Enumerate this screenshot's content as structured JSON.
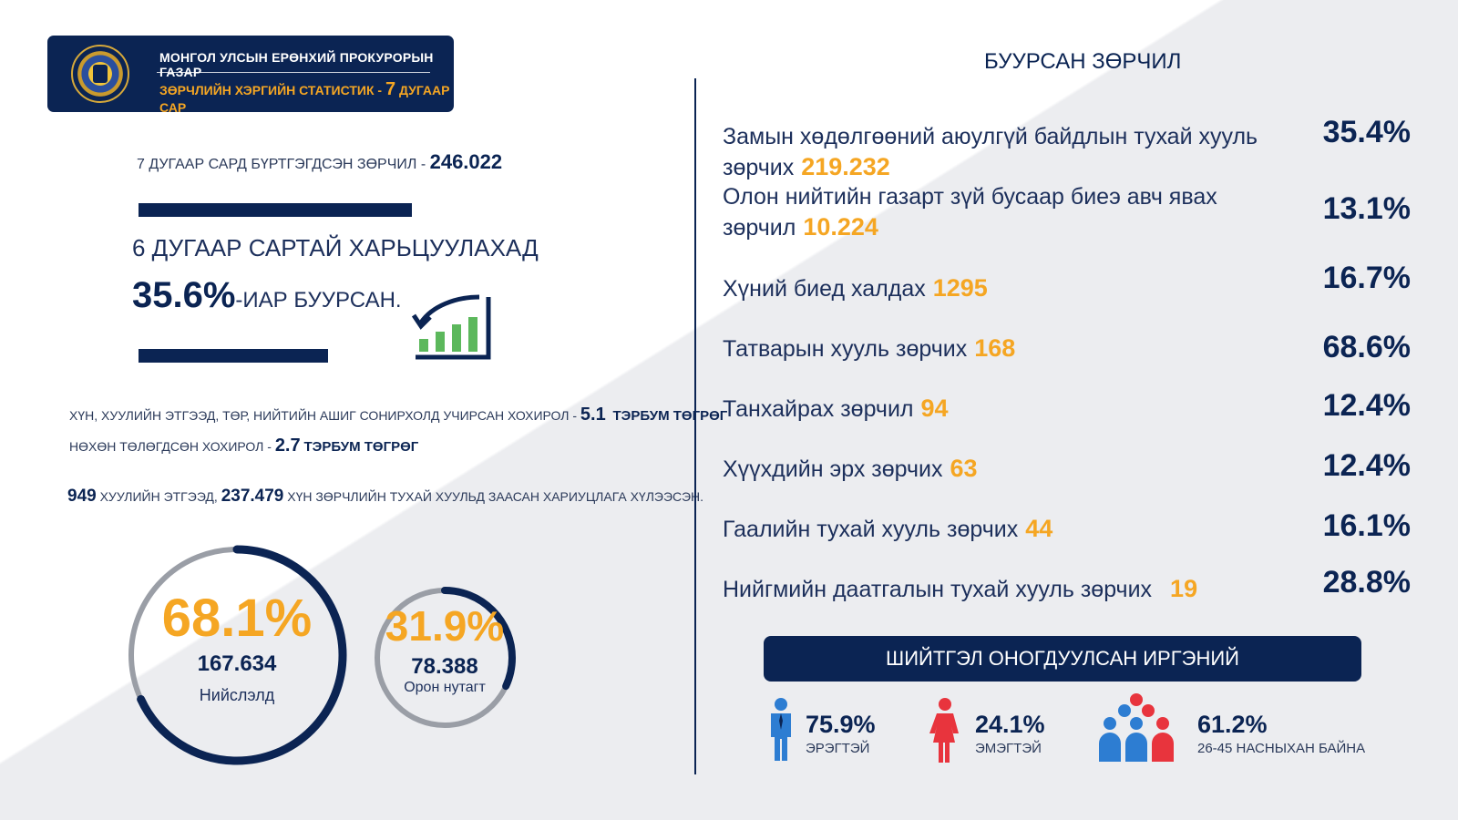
{
  "header": {
    "org": "МОНГОЛ УЛСЫН ЕРӨНХИЙ ПРОКУРОРЫН ГАЗАР",
    "subtitle_prefix": "ЗӨРЧЛИЙН ХЭРГИЙН СТАТИСТИК - ",
    "subtitle_month_num": "7",
    "subtitle_month": " ДУГААР САР"
  },
  "registered": {
    "label": "7 ДУГААР САРД БҮРТГЭГДСЭН ЗӨРЧИЛ - ",
    "value": "246.022"
  },
  "comparison": {
    "label": "6 ДУГААР САРТАЙ ХАРЬЦУУЛАХАД",
    "value": "35.6%",
    "suffix": "-ИАР БУУРСАН."
  },
  "damage": {
    "caused_label": "ХҮН, ХУУЛИЙН ЭТГЭЭД, ТӨР, НИЙТИЙН АШИГ СОНИРХОЛД УЧИРСАН ХОХИРОЛ - ",
    "caused_value": "5.1",
    "caused_unit": "ТЭРБУМ ТӨГРӨГ",
    "paid_label": "НӨХӨН ТӨЛӨГДСӨН ХОХИРОЛ - ",
    "paid_value": "2.7",
    "paid_unit": "ТЭРБУМ ТӨГРӨГ"
  },
  "responsibility": {
    "legal_count": "949",
    "legal_label": " ХУУЛИЙН ЭТГЭЭД, ",
    "person_count": "237.479",
    "person_label": " ХҮН ЗӨРЧЛИЙН ТУХАЙ ХУУЛЬД ЗААСАН ХАРИУЦЛАГА ХҮЛЭЭСЭН."
  },
  "circles": {
    "capital": {
      "pct": "68.1%",
      "share": 0.681,
      "value": "167.634",
      "label": "Нийслэлд"
    },
    "rural": {
      "pct": "31.9%",
      "share": 0.319,
      "value": "78.388",
      "label": "Орон нутагт"
    }
  },
  "decreased": {
    "title": "БУУРСАН ЗӨРЧИЛ",
    "items": [
      {
        "label": "Замын хөдөлгөөний аюулгүй байдлын тухай хууль зөрчих",
        "value": "219.232",
        "pct": "35.4%"
      },
      {
        "label": "Олон нийтийн газарт зүй бусаар биеэ авч явах зөрчил",
        "value": "10.224",
        "pct": "13.1%"
      },
      {
        "label": "Хүний биед халдах",
        "value": "1295",
        "pct": "16.7%"
      },
      {
        "label": "Татварын хууль зөрчих",
        "value": "168",
        "pct": "68.6%"
      },
      {
        "label": "Танхайрах зөрчил",
        "value": "94",
        "pct": "12.4%"
      },
      {
        "label": "Хүүхдийн эрх зөрчих",
        "value": "63",
        "pct": "12.4%"
      },
      {
        "label": "Гаалийн тухай хууль зөрчих",
        "value": "44",
        "pct": "16.1%"
      },
      {
        "label": "Нийгмийн даатгалын тухай хууль зөрчих",
        "value": "19",
        "pct": "28.8%"
      }
    ]
  },
  "penalized": {
    "title": "ШИЙТГЭЛ ОНОГДУУЛСАН ИРГЭНИЙ",
    "male": {
      "pct": "75.9%",
      "label": "ЭРЭГТЭЙ"
    },
    "female": {
      "pct": "24.1%",
      "label": "ЭМЭГТЭЙ"
    },
    "age": {
      "pct": "61.2%",
      "label": "26-45 НАСНЫХАН БАЙНА"
    }
  },
  "icons": [
    "emblem-icon",
    "declining-chart-icon",
    "male-icon",
    "female-icon",
    "group-icon"
  ],
  "colors": {
    "navy": "#0b2453",
    "orange": "#f5a623",
    "green": "#5cb85c",
    "blue": "#2d7dd2",
    "red": "#e8343d"
  }
}
